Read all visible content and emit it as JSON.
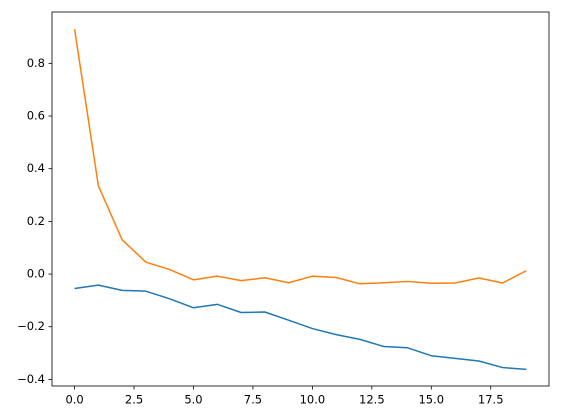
{
  "chart_data": {
    "type": "line",
    "x": [
      0,
      1,
      2,
      3,
      4,
      5,
      6,
      7,
      8,
      9,
      10,
      11,
      12,
      13,
      14,
      15,
      16,
      17,
      18,
      19
    ],
    "series": [
      {
        "color": "#1f77b4",
        "values": [
          -0.055,
          -0.042,
          -0.062,
          -0.065,
          -0.094,
          -0.128,
          -0.115,
          -0.146,
          -0.144,
          -0.175,
          -0.207,
          -0.23,
          -0.248,
          -0.275,
          -0.28,
          -0.31,
          -0.32,
          -0.33,
          -0.355,
          -0.362
        ]
      },
      {
        "color": "#ff7f0e",
        "values": [
          0.93,
          0.335,
          0.13,
          0.045,
          0.017,
          -0.022,
          -0.008,
          -0.025,
          -0.014,
          -0.033,
          -0.008,
          -0.013,
          -0.037,
          -0.033,
          -0.028,
          -0.035,
          -0.034,
          -0.015,
          -0.034,
          0.013
        ]
      }
    ],
    "xlim": [
      -0.95,
      19.95
    ],
    "ylim": [
      -0.425,
      0.995
    ],
    "xticks": [
      {
        "value": 0,
        "label": "0.0"
      },
      2.5,
      {
        "value": 5,
        "label": "5.0"
      },
      7.5,
      {
        "value": 10,
        "label": "10.0"
      },
      12.5,
      {
        "value": 15,
        "label": "15.0"
      },
      17.5
    ],
    "yticks": [
      {
        "value": -0.4,
        "label": "−0.4"
      },
      {
        "value": -0.2,
        "label": "−0.2"
      },
      {
        "value": 0,
        "label": "0.0"
      },
      {
        "value": 0.2,
        "label": "0.2"
      },
      {
        "value": 0.4,
        "label": "0.4"
      },
      {
        "value": 0.6,
        "label": "0.6"
      },
      {
        "value": 0.8,
        "label": "0.8"
      }
    ],
    "grid": false
  }
}
